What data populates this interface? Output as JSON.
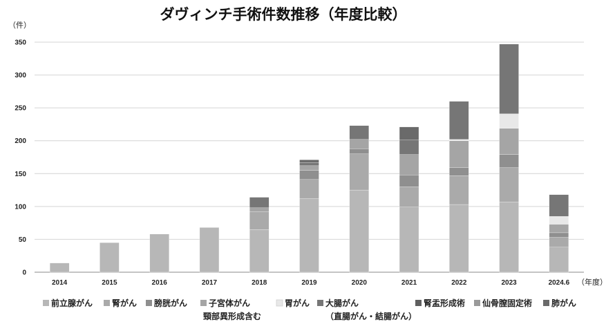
{
  "chart_data": {
    "type": "bar",
    "stacked": true,
    "title": "ダヴィンチ手術件数推移（年度比較）",
    "ylabel": "（件）",
    "xlabel": "（年度）",
    "ylim": [
      0,
      350
    ],
    "yticks": [
      "0",
      "50",
      "100",
      "150",
      "200",
      "250",
      "300",
      "350"
    ],
    "categories": [
      "2014",
      "2015",
      "2016",
      "2017",
      "2018",
      "2019",
      "2020",
      "2021",
      "2022",
      "2023",
      "2024.6"
    ],
    "grid": true,
    "legend_position": "bottom",
    "series": [
      {
        "name": "前立腺がん",
        "color": "#b7b7b7",
        "values": [
          14,
          45,
          58,
          68,
          65,
          112,
          125,
          99,
          103,
          107,
          38
        ]
      },
      {
        "name": "腎がん",
        "color": "#aaaaaa",
        "values": [
          0,
          0,
          0,
          0,
          27,
          29,
          55,
          31,
          44,
          52,
          15
        ]
      },
      {
        "name": "膀胱がん",
        "color": "#8f8f8f",
        "values": [
          0,
          0,
          0,
          0,
          0,
          14,
          8,
          18,
          12,
          20,
          7
        ]
      },
      {
        "name": "子宮体がん",
        "name_line2": "頸部異形成含む",
        "color": "#a5a5a5",
        "values": [
          0,
          0,
          0,
          0,
          6,
          7,
          14,
          31,
          41,
          40,
          13
        ]
      },
      {
        "name": "胃がん",
        "color": "#e8e8e8",
        "values": [
          0,
          0,
          0,
          0,
          0,
          0,
          0,
          0,
          2,
          22,
          12
        ]
      },
      {
        "name": "大腸がん",
        "name_line2": "（直腸がん・結腸がん）",
        "color": "#767676",
        "values": [
          0,
          0,
          0,
          0,
          16,
          5,
          21,
          22,
          58,
          106,
          33
        ]
      },
      {
        "name": "腎盂形成術",
        "color": "#5f5f5f",
        "values": [
          0,
          0,
          0,
          0,
          0,
          0,
          0,
          0,
          0,
          0,
          0
        ]
      },
      {
        "name": "仙骨膣固定術",
        "color": "#9a9a9a",
        "values": [
          0,
          0,
          0,
          0,
          0,
          0,
          0,
          0,
          0,
          0,
          0
        ]
      },
      {
        "name": "肺がん",
        "color": "#6a6a6a",
        "values": [
          0,
          0,
          0,
          0,
          0,
          4,
          0,
          20,
          0,
          0,
          0
        ]
      }
    ]
  }
}
